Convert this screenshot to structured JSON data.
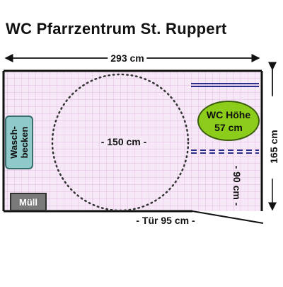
{
  "title": "WC Pfarrzentrum  St. Ruppert",
  "dimensions": {
    "width_label": "293 cm",
    "height_label": "165 cm",
    "circle_label": "- 150 cm -",
    "wc_depth_label": "- 90 cm -",
    "door_label": "-  Tür 95 cm -"
  },
  "fixtures": {
    "sink_line1": "Wasch-",
    "sink_line2": "becken",
    "bin_label": "Müll",
    "wc_line1": "WC Höhe",
    "wc_line2": "57 cm"
  },
  "colors": {
    "floor": "#f6e8f6",
    "tile_lines": "#e2bde2",
    "wall": "#111111",
    "grab_bar": "#2b2f8c",
    "wc": "#8ccc1a",
    "sink": "#8fc9c9",
    "bin": "#7a7a7a"
  }
}
